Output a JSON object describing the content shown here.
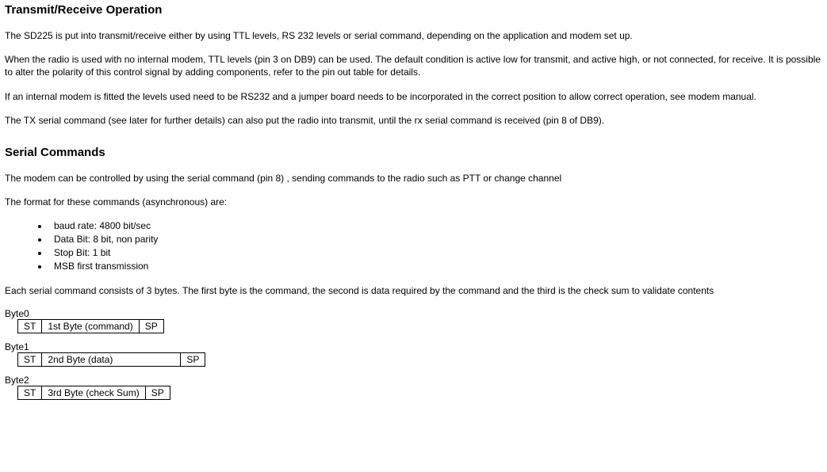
{
  "section1": {
    "heading": "Transmit/Receive Operation",
    "p1": "The SD225 is put into transmit/receive either by using TTL levels, RS 232 levels or serial command, depending on the application and modem set up.",
    "p2": "When the radio is used with no internal modem, TTL levels (pin 3 on DB9) can be used.  The default condition is active low for transmit, and active high, or not connected, for receive.  It is possible to alter the polarity of this control signal by adding components, refer to the pin out table for details.",
    "p3": "If an internal modem is fitted the levels used need to be RS232 and a jumper board needs to be incorporated in the correct position to allow correct operation, see modem manual.",
    "p4": "The TX serial command (see later for further details) can also put the radio into transmit, until the rx serial command is received (pin 8 of DB9)."
  },
  "section2": {
    "heading": "Serial Commands",
    "p1": "The modem can be controlled by using the serial command (pin 8) , sending commands to the radio such as PTT or change channel",
    "p2": "The format for these commands (asynchronous) are:",
    "bullets": {
      "b1": "baud rate: 4800 bit/sec",
      "b2": "Data Bit: 8 bit, non parity",
      "b3": "Stop Bit: 1 bit",
      "b4": "MSB first transmission"
    },
    "p3": "Each serial command consists of 3 bytes.  The first byte is the command, the second is data required by the command and the third is the check sum to validate contents"
  },
  "bytes": {
    "b0": {
      "label": "Byte0",
      "c1": "ST",
      "c2": "1st Byte (command)",
      "c3": "SP"
    },
    "b1": {
      "label": "Byte1",
      "c1": "ST",
      "c2": "2nd Byte (data)",
      "c3": "SP"
    },
    "b2": {
      "label": "Byte2",
      "c1": "ST",
      "c2": "3rd Byte (check Sum)",
      "c3": "SP"
    }
  }
}
